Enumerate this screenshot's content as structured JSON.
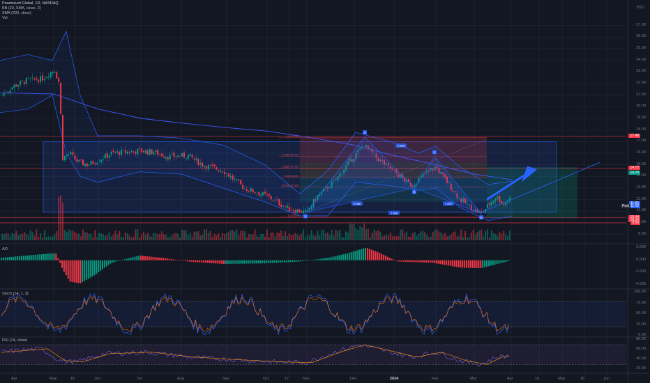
{
  "header": {
    "symbol_line": "Paramount Global, 1D, NASDAQ",
    "indicator_bb": "BB (20, SMA, close, 2)",
    "indicator_sma": "SMA (200, close)",
    "indicator_vol": "Vol",
    "currency": "USD"
  },
  "price_axis": [
    "27.00",
    "26.00",
    "25.00",
    "24.00",
    "23.00",
    "22.00",
    "21.00",
    "20.00",
    "19.00",
    "18.00",
    "17.00",
    "16.00",
    "15.00",
    "14.00",
    "13.00",
    "12.00",
    "11.00",
    "10.00",
    "9.00"
  ],
  "price_tags": [
    {
      "label": "17.48",
      "color": "#f23645"
    },
    {
      "label": "14.72",
      "color": "#f23645"
    },
    {
      "label": "14.29",
      "color": "#089981"
    },
    {
      "label": "11.65",
      "color": "#2962ff"
    },
    {
      "label": "11.42",
      "color": "#2962ff"
    },
    {
      "label": "10.44",
      "color": "#f23645"
    },
    {
      "label": "10.24",
      "color": "#f23645"
    },
    {
      "label": "9.98",
      "color": "#f23645"
    }
  ],
  "post_label": "Post",
  "time_axis": [
    "Apr",
    "May",
    "16",
    "Jun",
    "Jul",
    "Aug",
    "Sep",
    "Oct",
    "17",
    "Nov",
    "Dec",
    "2024",
    "Feb",
    "Mar",
    "Apr",
    "16",
    "May",
    "16",
    "Jun"
  ],
  "ao_panel": {
    "title": "AO",
    "ticks": [
      "2.000",
      "0.000",
      "-2.000",
      "-4.000"
    ]
  },
  "stoch_panel": {
    "title": "Stoch (14, 1, 3)",
    "ticks": [
      "100.00",
      "75.00",
      "50.00",
      "25.00",
      "0.00"
    ]
  },
  "rsi_panel": {
    "title": "RSI (14, close)",
    "ticks": [
      "80.00",
      "60.00",
      "40.00",
      "20.00"
    ]
  },
  "fib_labels": [
    "0 (17.33)",
    "0.236 (15.72)",
    "0.382 (14.72)",
    "0.5 (13.90)",
    "0.618 (13.10)",
    "1 (10.50)"
  ],
  "pattern_labels": [
    "X",
    "A",
    "B",
    "C",
    "D"
  ],
  "pattern_ratios": [
    "0.686",
    "0.608",
    "1.002",
    "1.308"
  ],
  "chart_data": {
    "type": "line",
    "title": "Paramount Global, 1D, NASDAQ",
    "ylim": [
      8.5,
      28
    ],
    "price_series": {
      "name": "Paramount Global",
      "x": [
        "Apr",
        "May",
        "16",
        "Jun",
        "Jul",
        "Aug",
        "Sep",
        "Oct",
        "17",
        "Nov",
        "Dec",
        "2024",
        "Feb",
        "Mar"
      ],
      "values": [
        21.5,
        22.8,
        15.5,
        15.6,
        16.3,
        15.8,
        14.5,
        12.6,
        11.2,
        11.2,
        16.8,
        14.2,
        14.6,
        11.8
      ]
    },
    "sma200": {
      "x": [
        "Apr",
        "May",
        "Jun",
        "Jul",
        "Aug",
        "Sep",
        "Oct",
        "Nov",
        "Dec",
        "2024",
        "Feb",
        "Mar"
      ],
      "values": [
        21.3,
        20.8,
        19.6,
        18.8,
        18.5,
        18.0,
        17.6,
        16.9,
        16.1,
        15.2,
        14.2,
        13.6
      ]
    },
    "ao": {
      "ylim": [
        -4.5,
        2.5
      ]
    },
    "stoch": {
      "ylim": [
        0,
        100
      ]
    },
    "rsi": {
      "ylim": [
        15,
        80
      ]
    }
  }
}
